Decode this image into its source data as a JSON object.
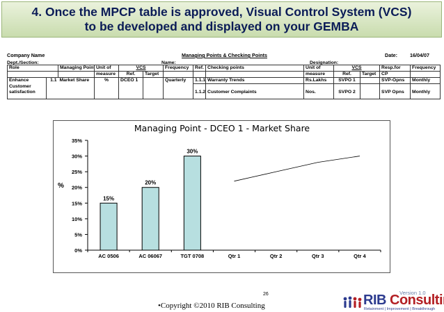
{
  "slide": {
    "title_line1": "4. Once the MPCP table is approved, Visual Control System (VCS)",
    "title_line2": "to be developed and displayed on your GEMBA",
    "accent_color": "#0b1c57"
  },
  "header": {
    "company": "Company Name",
    "doc_title": "Managing Points & Checking Points",
    "date_label": "Date:",
    "date_value": "16/04/07",
    "dept": "Dept./Section:",
    "name": "Name:",
    "designation": "Designation:"
  },
  "table": {
    "head1": {
      "role": "Role",
      "mp": "Managing Point",
      "unit1": "Unit of",
      "vcs1": "VCS",
      "freq1": "Frequency",
      "ref": "Ref.",
      "cp": "Checking points",
      "unit2": "Unit of",
      "vcs2": "VCS",
      "resp": "Resp.for",
      "freq2": "Frequency"
    },
    "head2": {
      "measure1": "measure",
      "ref1": "Ref.",
      "target1": "Target",
      "measure2": "measure",
      "ref2": "Ref.",
      "target2": "Target",
      "cp": "CP"
    },
    "row1": {
      "role": "Enhance",
      "mp_no": "1.1",
      "mp": "Market Share",
      "unit": "%",
      "vcs_ref": "DCEO 1",
      "freq": "Quarterly",
      "ref": "1.1.1",
      "cp": "Warranty Trends",
      "unit2": "Rs.Lakhs",
      "vcs2_ref": "SVPO 1",
      "resp": "SVP-Opns",
      "freq2": "Monthly"
    },
    "row2": {
      "role": "Customer"
    },
    "row3": {
      "role": "satisfaction",
      "ref": "1.1.2",
      "cp": "Customer Complaints",
      "unit2": "Nos.",
      "vcs2_ref": "SVPO 2",
      "resp": "SVP Opns",
      "freq2": "Monthly"
    }
  },
  "chart_data": {
    "type": "bar",
    "title": "Managing Point - DCEO 1 - Market Share",
    "ylabel": "%",
    "categories": [
      "AC 0506",
      "AC 06067",
      "TGT 0708",
      "Qtr 1",
      "Qtr 2",
      "Qtr 3",
      "Qtr 4"
    ],
    "series": [
      {
        "type": "bar",
        "values": [
          15,
          20,
          30,
          null,
          null,
          null,
          null
        ],
        "labels": [
          "15%",
          "20%",
          "30%"
        ],
        "color": "#b7dfe0"
      },
      {
        "type": "line",
        "values": [
          null,
          null,
          null,
          22,
          25,
          28,
          30
        ],
        "color": "#000000"
      }
    ],
    "ylim": [
      0,
      35
    ],
    "yticks": [
      "0%",
      "5%",
      "10%",
      "15%",
      "20%",
      "25%",
      "30%",
      "35%"
    ],
    "ytick_values": [
      0,
      5,
      10,
      15,
      20,
      25,
      30,
      35
    ]
  },
  "footer": {
    "page": "26",
    "copyright": "•Copyright ©2010 RIB Consulting",
    "version": "Version 1.0",
    "logo_rib": "RIB",
    "logo_con": "Consulting",
    "logo_tag": "Retainment | Improvement | Breakthrough"
  }
}
